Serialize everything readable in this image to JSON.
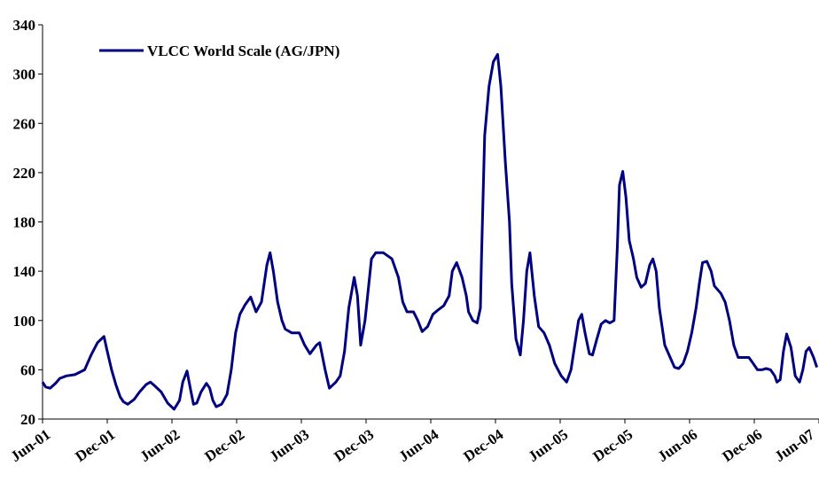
{
  "chart_data": {
    "type": "line",
    "x": [
      0,
      0.3,
      0.7,
      1.2,
      1.6,
      2.2,
      3.0,
      3.9,
      4.5,
      5.1,
      5.7,
      6.0,
      6.4,
      6.8,
      7.2,
      7.5,
      7.9,
      8.5,
      9.0,
      9.6,
      10.0,
      10.4,
      11.0,
      11.6,
      12.2,
      12.7,
      13.0,
      13.4,
      13.7,
      14.0,
      14.3,
      14.7,
      15.2,
      15.5,
      15.8,
      16.1,
      16.6,
      17.1,
      17.5,
      17.9,
      18.3,
      18.8,
      19.3,
      19.8,
      20.3,
      20.8,
      21.1,
      21.4,
      21.8,
      22.2,
      22.5,
      23.1,
      23.8,
      24.3,
      24.8,
      25.4,
      25.7,
      26.2,
      26.6,
      27.2,
      27.6,
      28.0,
      28.4,
      28.9,
      29.2,
      29.5,
      29.9,
      30.5,
      30.9,
      31.6,
      32.4,
      33.0,
      33.4,
      33.8,
      34.4,
      34.8,
      35.2,
      35.7,
      36.2,
      36.6,
      37.2,
      37.7,
      38.0,
      38.4,
      38.9,
      39.3,
      39.5,
      39.9,
      40.3,
      40.6,
      40.7,
      41.0,
      41.4,
      41.8,
      42.2,
      42.5,
      42.9,
      43.3,
      43.5,
      43.9,
      44.3,
      44.6,
      44.9,
      45.2,
      45.6,
      46.0,
      46.5,
      47.0,
      47.5,
      48.1,
      48.6,
      49.0,
      49.7,
      50.0,
      50.3,
      50.7,
      51.0,
      51.4,
      51.8,
      52.2,
      52.6,
      53.0,
      53.3,
      53.5,
      53.8,
      54.1,
      54.4,
      54.8,
      55.1,
      55.5,
      55.9,
      56.3,
      56.6,
      56.9,
      57.2,
      57.7,
      58.2,
      58.6,
      59.0,
      59.4,
      59.8,
      60.2,
      60.6,
      60.9,
      61.2,
      61.6,
      62.0,
      62.3,
      62.9,
      63.3,
      63.7,
      64.1,
      64.5,
      65.1,
      65.5,
      65.9,
      66.3,
      66.7,
      67.1,
      67.5,
      67.9,
      68.1,
      68.4,
      68.7,
      69.0,
      69.4,
      69.8,
      70.2,
      70.5,
      70.8,
      71.1,
      71.5,
      71.8
    ],
    "series": [
      {
        "name": "VLCC World Scale (AG/JPN)",
        "color": "#000080",
        "values": [
          50,
          46,
          45,
          49,
          53,
          55,
          56,
          60,
          72,
          82,
          87,
          75,
          60,
          48,
          38,
          34,
          32,
          36,
          42,
          48,
          50,
          47,
          42,
          33,
          28,
          35,
          50,
          59,
          45,
          32,
          33,
          42,
          49,
          45,
          35,
          30,
          32,
          40,
          60,
          90,
          105,
          113,
          119,
          107,
          115,
          145,
          155,
          140,
          115,
          100,
          93,
          90,
          90,
          80,
          73,
          80,
          82,
          60,
          45,
          50,
          55,
          75,
          110,
          135,
          120,
          80,
          100,
          150,
          155,
          155,
          150,
          135,
          115,
          107,
          107,
          100,
          91,
          95,
          105,
          108,
          112,
          120,
          140,
          147,
          135,
          120,
          107,
          100,
          98,
          110,
          150,
          250,
          290,
          310,
          316,
          290,
          230,
          180,
          130,
          85,
          72,
          100,
          140,
          155,
          120,
          95,
          90,
          80,
          65,
          55,
          50,
          60,
          100,
          105,
          90,
          73,
          72,
          85,
          97,
          100,
          98,
          100,
          160,
          210,
          221,
          200,
          165,
          150,
          135,
          127,
          130,
          145,
          150,
          140,
          110,
          80,
          70,
          62,
          61,
          65,
          75,
          90,
          110,
          130,
          147,
          148,
          140,
          128,
          122,
          115,
          100,
          80,
          70,
          70,
          70,
          65,
          60,
          60,
          61,
          60,
          55,
          50,
          52,
          75,
          89,
          78,
          55,
          50,
          60,
          75,
          78,
          70,
          62
        ]
      }
    ],
    "xlim": [
      0,
      72
    ],
    "ylim": [
      20,
      340
    ],
    "xticks": [
      {
        "value": 0,
        "label": "Jun-01"
      },
      {
        "value": 6,
        "label": "Dec-01"
      },
      {
        "value": 12,
        "label": "Jun-02"
      },
      {
        "value": 18,
        "label": "Dec-02"
      },
      {
        "value": 24,
        "label": "Jun-03"
      },
      {
        "value": 30,
        "label": "Dec-03"
      },
      {
        "value": 36,
        "label": "Jun-04"
      },
      {
        "value": 42,
        "label": "Dec-04"
      },
      {
        "value": 48,
        "label": "Jun-05"
      },
      {
        "value": 54,
        "label": "Dec-05"
      },
      {
        "value": 60,
        "label": "Jun-06"
      },
      {
        "value": 66,
        "label": "Dec-06"
      },
      {
        "value": 72,
        "label": "Jun-07"
      }
    ],
    "yticks": [
      20,
      60,
      100,
      140,
      180,
      220,
      260,
      300,
      340
    ],
    "legend": "upper-left"
  }
}
